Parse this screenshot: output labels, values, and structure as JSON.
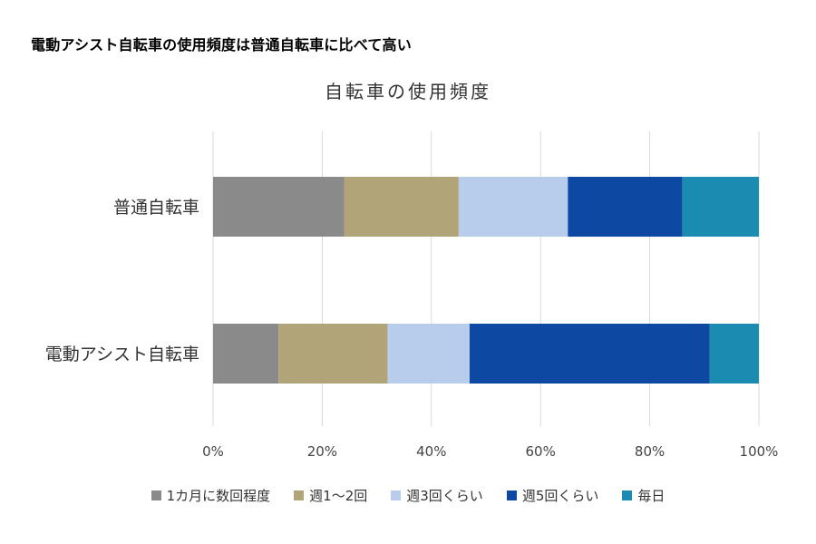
{
  "headline": "電動アシスト自転車の使用頻度は普通自転車に比べて高い",
  "chart_data": {
    "type": "bar",
    "orientation": "horizontal",
    "stacked": true,
    "percent": true,
    "title": "自転車の使用頻度",
    "categories": [
      "普通自転車",
      "電動アシスト自転車"
    ],
    "series": [
      {
        "name": "1カ月に数回程度",
        "color": "#8a8a8a",
        "values": [
          24,
          12
        ]
      },
      {
        "name": "週1～2回",
        "color": "#b1a478",
        "values": [
          21,
          20
        ]
      },
      {
        "name": "週3回くらい",
        "color": "#b8ccec",
        "values": [
          20,
          15
        ]
      },
      {
        "name": "週5回くらい",
        "color": "#0d49a3",
        "values": [
          21,
          44
        ]
      },
      {
        "name": "毎日",
        "color": "#1b8bb1",
        "values": [
          14,
          9
        ]
      }
    ],
    "xlim": [
      0,
      100
    ],
    "xticks": [
      "0%",
      "20%",
      "40%",
      "60%",
      "80%",
      "100%"
    ],
    "grid": true,
    "legend": "bottom"
  }
}
